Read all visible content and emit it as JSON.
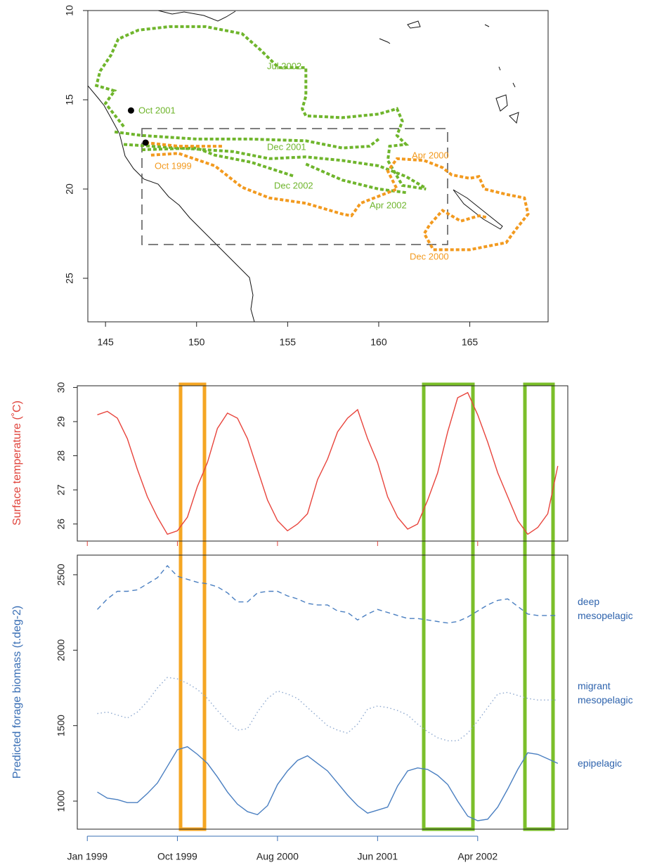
{
  "chart_data": [
    {
      "type": "map",
      "xlim": [
        144.03,
        169.3
      ],
      "ylim": [
        10,
        27.44
      ],
      "y_inverted": true,
      "xticks": [
        145,
        150,
        155,
        160,
        165
      ],
      "yticks": [
        10,
        15,
        20,
        25
      ],
      "series": [
        {
          "color": "#6fb52c",
          "x": [
            146.0,
            145.0,
            145.5,
            144.5,
            144.7,
            145.3,
            145.7,
            146.8,
            148.5,
            150.5,
            152.5,
            153.5,
            154.5,
            156.0,
            156.0,
            155.8,
            156.0,
            158.0,
            160.0,
            161.0,
            161.3,
            161.0,
            161.5,
            160.6,
            160.5,
            161.3,
            162.6,
            null,
            145.5,
            147.0,
            150.0,
            153.0,
            156.0,
            158.0,
            159.5,
            160.0,
            null,
            146.0,
            149.0,
            152.0,
            154.0,
            156.0,
            158.0,
            160.0,
            161.5,
            162.5,
            null,
            147.0,
            150.0,
            151.0,
            153.0,
            154.5,
            155.4,
            null,
            156.0,
            158.0,
            160.0,
            161.5
          ],
          "y": [
            16.5,
            15.2,
            14.5,
            14.2,
            13.4,
            12.5,
            11.6,
            11.1,
            10.9,
            10.9,
            11.3,
            12.2,
            13.2,
            13.2,
            14.8,
            15.5,
            15.9,
            16.0,
            15.8,
            15.5,
            16.2,
            17.0,
            17.5,
            17.6,
            18.4,
            19.8,
            20.0,
            null,
            16.8,
            17.0,
            17.2,
            17.2,
            17.3,
            17.7,
            17.6,
            17.2,
            null,
            17.5,
            17.7,
            17.9,
            18.3,
            18.2,
            18.4,
            18.7,
            19.3,
            19.9,
            null,
            17.8,
            17.7,
            18.1,
            18.5,
            19.0,
            19.3,
            null,
            18.6,
            19.5,
            20.0,
            20.2
          ]
        },
        {
          "color": "#f29a1f",
          "x": [
            147.2,
            149.0,
            151.5,
            null,
            147.5,
            149.0,
            151.0,
            152.5,
            154.0,
            156.0,
            158.0,
            158.5,
            159.0,
            160.0,
            161.0,
            160.5,
            161.0,
            162.5,
            163.5,
            164.0,
            165.0,
            165.5,
            165.8,
            167.0,
            168.0,
            168.2,
            167.5,
            167.0,
            165.0,
            163.0,
            162.5,
            162.8,
            163.5,
            164.5,
            165.5,
            166.0
          ],
          "y": [
            17.4,
            17.6,
            17.6,
            null,
            18.1,
            18.0,
            18.7,
            19.9,
            20.5,
            20.8,
            21.4,
            21.5,
            20.8,
            20.4,
            20.0,
            19.0,
            18.3,
            18.4,
            18.8,
            19.2,
            19.4,
            19.3,
            20.0,
            20.3,
            20.5,
            21.4,
            22.3,
            23.0,
            23.4,
            23.4,
            22.5,
            22.0,
            21.2,
            21.8,
            21.5,
            21.6
          ]
        }
      ],
      "points": {
        "x": [
          146.4,
          147.2
        ],
        "y": [
          15.6,
          17.4
        ]
      },
      "annotations": [
        {
          "text": "Jul 2002",
          "color": "#6fb52c"
        },
        {
          "text": "Oct 2001",
          "color": "#6fb52c"
        },
        {
          "text": "Dec 2001",
          "color": "#6fb52c"
        },
        {
          "text": "Oct 1999",
          "color": "#f29a1f"
        },
        {
          "text": "Dec 2002",
          "color": "#6fb52c"
        },
        {
          "text": "Apr 2000",
          "color": "#f29a1f"
        },
        {
          "text": "Apr 2002",
          "color": "#6fb52c"
        },
        {
          "text": "Dec 2000",
          "color": "#f29a1f"
        }
      ]
    },
    {
      "type": "line",
      "y_label": "Surface temperature (˚C)",
      "label_color": "#e0443c",
      "xlim": [
        "1998-12",
        "2003-01"
      ],
      "ylim": [
        25.5,
        30.05
      ],
      "yticks": [
        26,
        27,
        28,
        29,
        30
      ],
      "x": [
        "1999-02",
        "1999-03",
        "1999-04",
        "1999-05",
        "1999-06",
        "1999-07",
        "1999-08",
        "1999-09",
        "1999-10",
        "1999-11",
        "1999-12",
        "2000-01",
        "2000-02",
        "2000-03",
        "2000-04",
        "2000-05",
        "2000-06",
        "2000-07",
        "2000-08",
        "2000-09",
        "2000-10",
        "2000-11",
        "2000-12",
        "2001-01",
        "2001-02",
        "2001-03",
        "2001-04",
        "2001-05",
        "2001-06",
        "2001-07",
        "2001-08",
        "2001-09",
        "2001-10",
        "2001-11",
        "2001-12",
        "2002-01",
        "2002-02",
        "2002-03",
        "2002-04",
        "2002-05",
        "2002-06",
        "2002-07",
        "2002-08",
        "2002-09",
        "2002-10",
        "2002-11",
        "2002-12"
      ],
      "series": [
        {
          "color": "#e8443c",
          "dash": "solid",
          "values": [
            29.2,
            29.3,
            29.1,
            28.5,
            27.6,
            26.8,
            26.2,
            25.7,
            25.8,
            26.2,
            27.1,
            27.8,
            28.8,
            29.25,
            29.1,
            28.5,
            27.6,
            26.7,
            26.1,
            25.8,
            26.0,
            26.3,
            27.3,
            27.9,
            28.7,
            29.1,
            29.35,
            28.5,
            27.8,
            26.8,
            26.2,
            25.85,
            26.0,
            26.7,
            27.5,
            28.7,
            29.7,
            29.85,
            29.2,
            28.4,
            27.5,
            26.8,
            26.1,
            25.7,
            25.9,
            26.3,
            27.7
          ]
        }
      ]
    },
    {
      "type": "line",
      "y_label": "Predicted forage biomass (t.deg-2)",
      "label_color": "#3a6fb5",
      "xlim": [
        "1998-12",
        "2003-01"
      ],
      "ylim": [
        814,
        2630
      ],
      "yticks": [
        1000,
        1500,
        2000,
        2500
      ],
      "xticks": [
        {
          "value": "1999-01",
          "label": "Jan 1999"
        },
        {
          "value": "1999-10",
          "label": "Oct 1999"
        },
        {
          "value": "2000-08",
          "label": "Aug 2000"
        },
        {
          "value": "2001-06",
          "label": "Jun 2001"
        },
        {
          "value": "2002-04",
          "label": "Apr 2002"
        }
      ],
      "x": [
        "1999-02",
        "1999-03",
        "1999-04",
        "1999-05",
        "1999-06",
        "1999-07",
        "1999-08",
        "1999-09",
        "1999-10",
        "1999-11",
        "1999-12",
        "2000-01",
        "2000-02",
        "2000-03",
        "2000-04",
        "2000-05",
        "2000-06",
        "2000-07",
        "2000-08",
        "2000-09",
        "2000-10",
        "2000-11",
        "2000-12",
        "2001-01",
        "2001-02",
        "2001-03",
        "2001-04",
        "2001-05",
        "2001-06",
        "2001-07",
        "2001-08",
        "2001-09",
        "2001-10",
        "2001-11",
        "2001-12",
        "2002-01",
        "2002-02",
        "2002-03",
        "2002-04",
        "2002-05",
        "2002-06",
        "2002-07",
        "2002-08",
        "2002-09",
        "2002-10",
        "2002-11",
        "2002-12"
      ],
      "series": [
        {
          "name": "deep mesopelagic",
          "color": "#4a7fc1",
          "dash": "dashed",
          "values": [
            2270,
            2340,
            2390,
            2390,
            2400,
            2440,
            2480,
            2560,
            2490,
            2470,
            2450,
            2440,
            2420,
            2380,
            2320,
            2320,
            2380,
            2390,
            2390,
            2360,
            2340,
            2310,
            2300,
            2300,
            2260,
            2250,
            2200,
            2240,
            2270,
            2250,
            2230,
            2210,
            2210,
            2200,
            2190,
            2180,
            2190,
            2220,
            2260,
            2300,
            2330,
            2340,
            2290,
            2240,
            2230,
            2230,
            2230
          ]
        },
        {
          "name": "migrant mesopelagic",
          "color": "#8ea9cf",
          "dash": "dotted",
          "values": [
            1580,
            1590,
            1570,
            1550,
            1590,
            1660,
            1750,
            1820,
            1810,
            1780,
            1740,
            1680,
            1600,
            1530,
            1470,
            1480,
            1590,
            1680,
            1730,
            1710,
            1680,
            1620,
            1560,
            1500,
            1470,
            1450,
            1510,
            1610,
            1630,
            1620,
            1600,
            1570,
            1510,
            1460,
            1420,
            1400,
            1400,
            1450,
            1530,
            1620,
            1710,
            1720,
            1700,
            1680,
            1670,
            1670,
            1670
          ]
        },
        {
          "name": "epipelagic",
          "color": "#4a7fc1",
          "dash": "solid",
          "values": [
            1060,
            1020,
            1010,
            990,
            990,
            1050,
            1120,
            1230,
            1340,
            1360,
            1310,
            1250,
            1160,
            1060,
            980,
            930,
            910,
            970,
            1110,
            1200,
            1270,
            1300,
            1250,
            1200,
            1120,
            1040,
            970,
            920,
            940,
            960,
            1100,
            1200,
            1220,
            1210,
            1170,
            1110,
            1000,
            900,
            870,
            880,
            960,
            1080,
            1210,
            1320,
            1310,
            1280,
            1250
          ]
        }
      ]
    }
  ]
}
